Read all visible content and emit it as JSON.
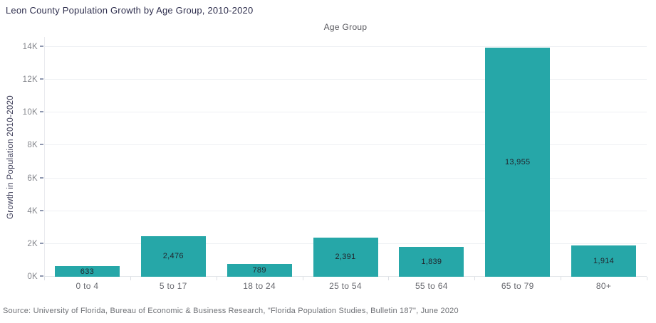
{
  "title": "Leon County Population Growth by Age Group, 2010-2020",
  "source": "Source: University of Florida, Bureau of Economic & Business Research, \"Florida Population Studies, Bulletin 187\", June 2020",
  "chart_data": {
    "type": "bar",
    "title": "Leon County Population Growth by Age Group, 2010-2020",
    "column_header": "Age Group",
    "xlabel": "Age Group",
    "ylabel": "Growth in Population 2010-2020",
    "categories": [
      "0 to 4",
      "5 to 17",
      "18 to 24",
      "25 to 54",
      "55 to 64",
      "65 to 79",
      "80+"
    ],
    "values": [
      633,
      2476,
      789,
      2391,
      1839,
      13955,
      1914
    ],
    "value_labels": [
      "633",
      "2,476",
      "789",
      "2,391",
      "1,839",
      "13,955",
      "1,914"
    ],
    "ylim": [
      0,
      14000
    ],
    "ytick_interval": 2000,
    "ytick_labels": [
      "0K",
      "2K",
      "4K",
      "6K",
      "8K",
      "10K",
      "12K",
      "14K"
    ],
    "grid": true,
    "legend": "none",
    "bar_color": "#26a7a8",
    "value_label_color": "#22262e"
  }
}
